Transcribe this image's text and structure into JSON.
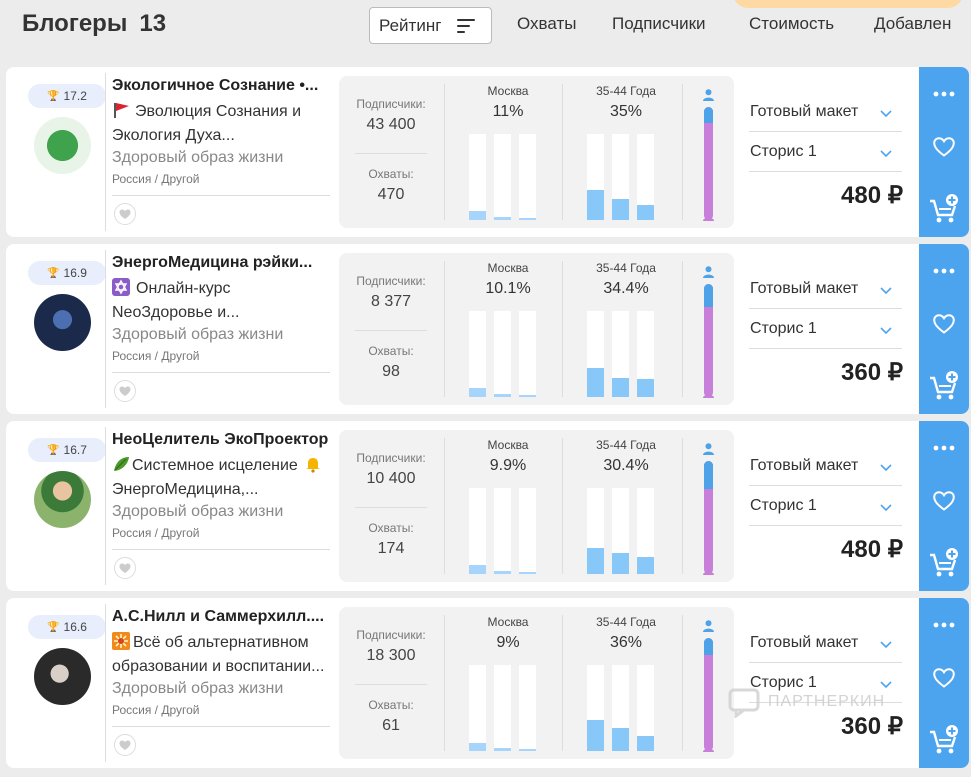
{
  "header": {
    "title": "Блогеры",
    "count": "13",
    "sort_label": "Рейтинг",
    "nav": [
      "Охваты",
      "Подписчики",
      "Стоимость",
      "Добавлен"
    ]
  },
  "colors": {
    "accent": "#4ca4ef",
    "bar_light": "#a6d4fb",
    "female": "#c77fd9",
    "male": "#4ea3e8"
  },
  "cards": [
    {
      "rank": "17.2",
      "name": "Экологичное Сознание •...",
      "desc_line1": "Эволюция Сознания и",
      "desc_line2": "Экология Духа...",
      "desc_emoji": "flag",
      "category": "Здоровый образ жизни",
      "geo": "Россия / Другой",
      "followers_label": "Подписчики:",
      "followers": "43 400",
      "reach_label": "Охваты:",
      "reach": "470",
      "city": "Москва",
      "city_pct": "11%",
      "city_bars": [
        0.11,
        0.03,
        0.02
      ],
      "age": "35-44 Года",
      "age_pct": "35%",
      "age_bars": [
        0.35,
        0.25,
        0.18
      ],
      "male_share": 0.14,
      "format": "Готовый макет",
      "placement": "Сторис 1",
      "price": "480 ₽"
    },
    {
      "rank": "16.9",
      "name": "ЭнергоМедицина рэйки...",
      "desc_line1": "Онлайн-курс",
      "desc_line2": "NeoЗдоровье и...",
      "desc_emoji": "star",
      "category": "Здоровый образ жизни",
      "geo": "Россия / Другой",
      "followers_label": "Подписчики:",
      "followers": "8 377",
      "reach_label": "Охваты:",
      "reach": "98",
      "city": "Москва",
      "city_pct": "10.1%",
      "city_bars": [
        0.1,
        0.03,
        0.02
      ],
      "age": "35-44 Года",
      "age_pct": "34.4%",
      "age_bars": [
        0.34,
        0.22,
        0.21
      ],
      "male_share": 0.2,
      "format": "Готовый макет",
      "placement": "Сторис 1",
      "price": "360 ₽"
    },
    {
      "rank": "16.7",
      "name": "НеоЦелитель ЭкоПроектор",
      "desc_line1": "Системное исцеление",
      "desc_line2": "ЭнергоМедицина,...",
      "desc_emoji": "leaf",
      "category": "Здоровый образ жизни",
      "geo": "Россия / Другой",
      "followers_label": "Подписчики:",
      "followers": "10 400",
      "reach_label": "Охваты:",
      "reach": "174",
      "city": "Москва",
      "city_pct": "9.9%",
      "city_bars": [
        0.1,
        0.03,
        0.02
      ],
      "age": "35-44 Года",
      "age_pct": "30.4%",
      "age_bars": [
        0.3,
        0.25,
        0.2
      ],
      "male_share": 0.25,
      "format": "Готовый макет",
      "placement": "Сторис 1",
      "price": "480 ₽"
    },
    {
      "rank": "16.6",
      "name": "А.С.Нилл и Саммерхилл....",
      "desc_line1": "Всё об альтернативном",
      "desc_line2": "образовании и воспитании...",
      "desc_emoji": "sun",
      "category": "Здоровый образ жизни",
      "geo": "Россия / Другой",
      "followers_label": "Подписчики:",
      "followers": "18 300",
      "reach_label": "Охваты:",
      "reach": "61",
      "city": "Москва",
      "city_pct": "9%",
      "city_bars": [
        0.09,
        0.03,
        0.02
      ],
      "age": "35-44 Года",
      "age_pct": "36%",
      "age_bars": [
        0.36,
        0.27,
        0.18
      ],
      "male_share": 0.15,
      "format": "Готовый макет",
      "placement": "Сторис 1",
      "price": "360 ₽"
    }
  ],
  "watermark": "ПАРТНЕРКИН"
}
